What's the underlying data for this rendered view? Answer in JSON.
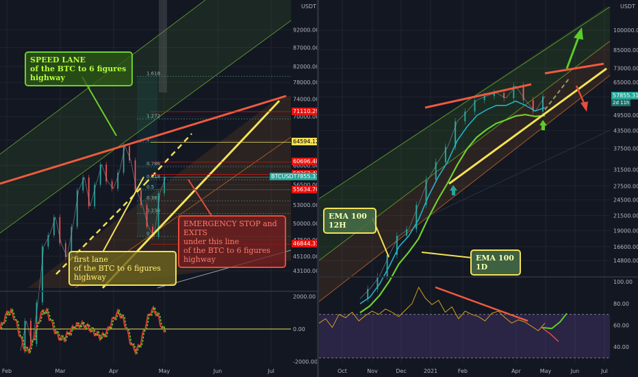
{
  "chart_data": [
    {
      "type": "line",
      "title": "",
      "symbol": "BTCUSDT",
      "currency": "USDT",
      "x_tick_labels": [
        "Feb",
        "Mar",
        "Apr",
        "May",
        "Jun",
        "Jul"
      ],
      "y_tick_labels": [
        "43100.00",
        "45100.00",
        "47500.00",
        "50000.00",
        "53000.00",
        "56500.00",
        "60000.00",
        "65000.00",
        "70000.00",
        "74000.00",
        "78000.00",
        "82000.00",
        "87000.00",
        "92000.00"
      ],
      "ylim": [
        41000,
        100000
      ],
      "log_scale": true,
      "price_labels": [
        {
          "text": "71110.29",
          "color": "#e5120f"
        },
        {
          "text": "64594.12",
          "color": "#f5e257"
        },
        {
          "text": "60696.40",
          "color": "#e5120f"
        },
        {
          "text": "58363.43",
          "color": "#e5120f"
        },
        {
          "text": "57855.31",
          "color": "#26a69a"
        },
        {
          "text": "55634.70",
          "color": "#e5120f"
        },
        {
          "text": "46844.31",
          "color": "#e5120f"
        }
      ],
      "price_values": [
        71110.29,
        64594.12,
        60696.4,
        58363.43,
        57855.31,
        55634.7,
        46844.31
      ],
      "fib_levels": [
        {
          "label": "1.618",
          "value": 79500
        },
        {
          "label": "1.272",
          "value": 69500
        },
        {
          "label": "1",
          "value": 64594
        },
        {
          "label": "0.786",
          "value": 59800
        },
        {
          "label": "0.618",
          "value": 57400
        },
        {
          "label": "0.5",
          "value": 55600
        },
        {
          "label": "0.382",
          "value": 53700
        },
        {
          "label": "0.236",
          "value": 51600
        },
        {
          "label": "0",
          "value": 48000
        }
      ],
      "price_series": [
        33500,
        36800,
        34200,
        39000,
        46500,
        48200,
        51000,
        47000,
        45000,
        49500,
        55500,
        57800,
        52800,
        56500,
        60200,
        57100,
        55800,
        58700,
        63800,
        61000,
        55500,
        53000,
        49500,
        48000,
        55000,
        57855
      ],
      "annotations": [
        "SPEED LANE",
        "of the BTC to 6 figures highway",
        "first lane",
        "of the BTC to 6 figures highway",
        "EMERGENCY STOP and EXITS",
        " under this line",
        "of the BTC to 6 figures highway"
      ],
      "oscillator": {
        "y_tick_labels": [
          "2000.00",
          "0.00",
          "-2000.00"
        ],
        "ylim": [
          -2100,
          2100
        ]
      }
    },
    {
      "type": "line",
      "title": "",
      "currency": "USDT",
      "x_tick_labels": [
        "Oct",
        "Nov",
        "Dec",
        "2021",
        "Feb",
        "Apr",
        "May",
        "Jun",
        "Jul"
      ],
      "y_tick_labels": [
        "14800.00",
        "16600.00",
        "19000.00",
        "21500.00",
        "24500.00",
        "27500.00",
        "31500.00",
        "37500.00",
        "43500.00",
        "49500.00",
        "57500.00",
        "65000.00",
        "73000.00",
        "85000.00",
        "100000.00"
      ],
      "ylim": [
        13000,
        125000
      ],
      "log_scale": true,
      "price_labels": [
        {
          "text": "57855.31",
          "color": "#26a69a"
        }
      ],
      "countdown": "2d 11h",
      "price_series": [
        10800,
        11700,
        13000,
        15500,
        18200,
        19200,
        23500,
        29000,
        33500,
        38000,
        47000,
        51000,
        56000,
        58000,
        59500,
        57000,
        63000,
        56000,
        51000,
        57855
      ],
      "ema_12h": [
        10700,
        11300,
        12600,
        14600,
        17200,
        18800,
        21500,
        26000,
        30500,
        34800,
        41500,
        46500,
        51000,
        53500,
        55500,
        55500,
        57500,
        55500,
        53000,
        54500
      ],
      "ema_1d": [
        10400,
        11000,
        12000,
        13500,
        15600,
        17200,
        19200,
        22800,
        26600,
        30500,
        35500,
        40500,
        44600,
        47500,
        50000,
        51500,
        53200,
        53800,
        53000,
        53400
      ],
      "annotations": [
        "EMA 100 12H",
        "EMA 100 1D"
      ],
      "oscillator": {
        "y_tick_labels": [
          "100.00",
          "80.00",
          "60.00",
          "40.00"
        ],
        "ylim": [
          25,
          102
        ],
        "values": [
          62,
          66,
          58,
          70,
          67,
          72,
          64,
          69,
          73,
          70,
          75,
          72,
          68,
          74,
          80,
          95,
          85,
          79,
          83,
          72,
          77,
          66,
          73,
          70,
          68,
          64,
          71,
          73,
          67,
          62,
          65,
          63,
          59,
          55,
          62
        ]
      }
    }
  ]
}
